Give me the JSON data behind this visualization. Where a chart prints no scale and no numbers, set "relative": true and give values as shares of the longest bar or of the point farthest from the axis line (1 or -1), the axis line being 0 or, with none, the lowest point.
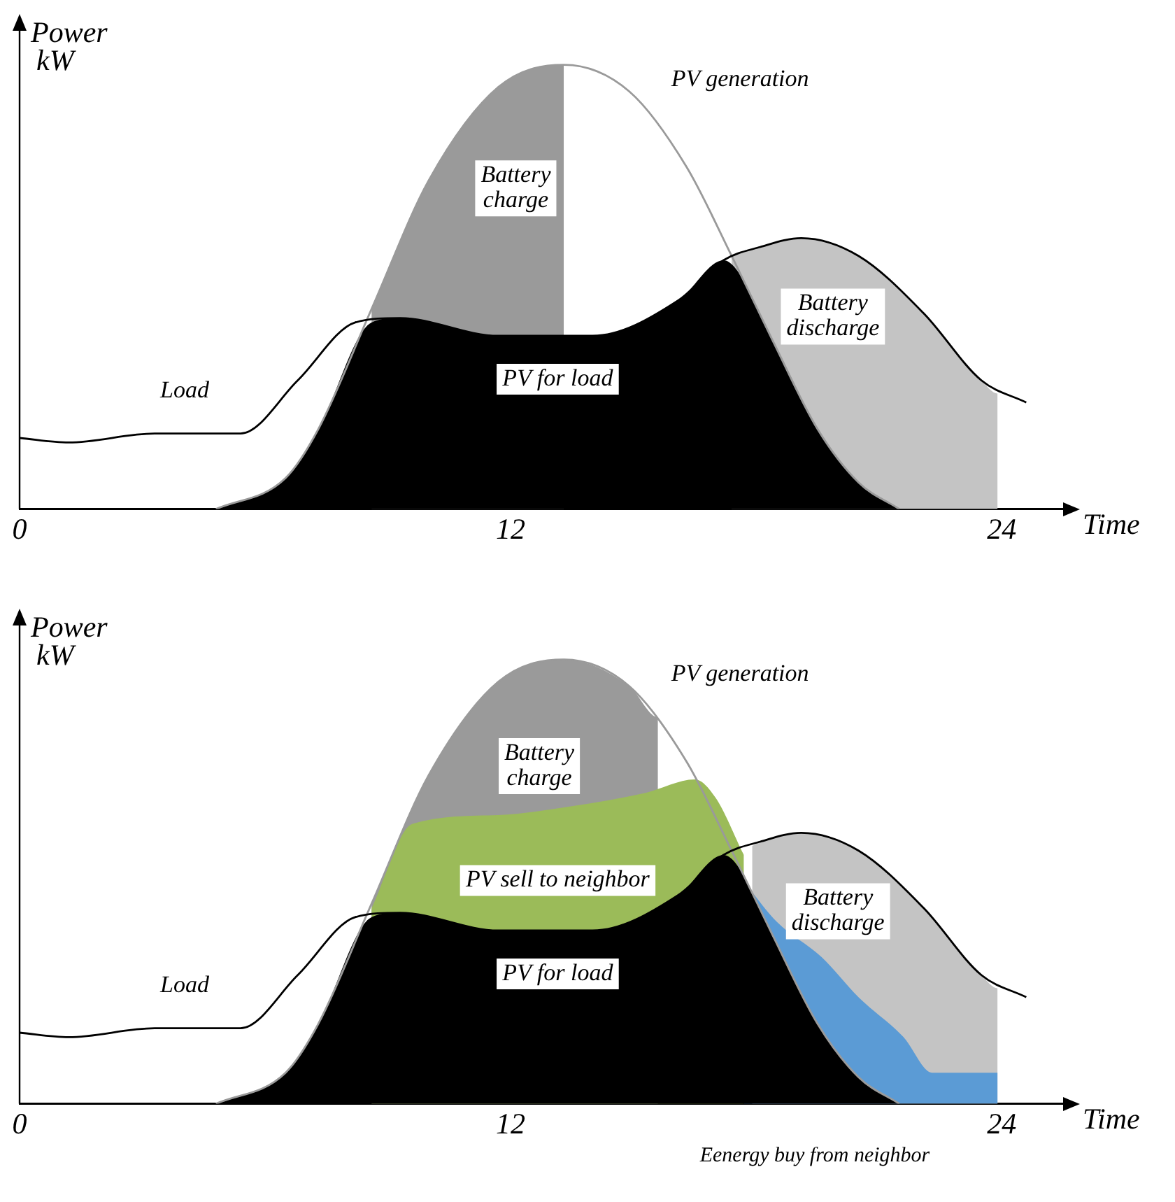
{
  "chart_data": [
    {
      "type": "line",
      "relative": true,
      "xlabel": "Time",
      "ylabel": "Power kW",
      "xlim": [
        0,
        25.5
      ],
      "xticks": [
        0,
        12,
        24
      ],
      "grid": false,
      "legend": false,
      "marker": "none",
      "series": [
        {
          "type": "area",
          "name": "Battery charge",
          "color": "#9a9a9a",
          "x": [
            8.6,
            10,
            11.7,
            13.3,
            13.3
          ],
          "values": [
            0.45,
            0.74,
            0.95,
            1,
            0
          ]
        },
        {
          "type": "area",
          "name": "Battery discharge",
          "color": "#c4c4c4",
          "x": [
            17.4,
            18.1,
            19.1,
            20.5,
            22.1,
            23.5,
            23.9,
            23.9
          ],
          "values": [
            0.57,
            0.59,
            0.61,
            0.57,
            0.44,
            0.29,
            0.26,
            0
          ]
        },
        {
          "type": "area",
          "name": "PV for load",
          "color": "#000000",
          "x": [
            4.8,
            6.5,
            7.3,
            8.6,
            9.3,
            11.7,
            14,
            16.1,
            17.2,
            18.4,
            19.5,
            20.5,
            21.5
          ],
          "values": [
            0,
            0.07,
            0.18,
            0.42,
            0.43,
            0.39,
            0.39,
            0.47,
            0.56,
            0.38,
            0.18,
            0.06,
            0
          ]
        },
        {
          "type": "line",
          "name": "PV generation",
          "color": "#9a9a9a",
          "x": [
            4.8,
            6.5,
            7.3,
            8.6,
            10,
            11.7,
            13.3,
            14.9,
            16.3,
            17.4,
            18.4,
            19.5,
            20.5,
            21.5
          ],
          "values": [
            0,
            0.07,
            0.18,
            0.45,
            0.74,
            0.95,
            1,
            0.94,
            0.77,
            0.57,
            0.38,
            0.18,
            0.06,
            0
          ]
        },
        {
          "type": "line",
          "name": "Load",
          "color": "#000000",
          "x": [
            0,
            1.2,
            3.3,
            5.4,
            6.8,
            8.2,
            9.3,
            11.7,
            14,
            16.1,
            17.2,
            18.1,
            19.1,
            20.5,
            22.1,
            23.5,
            24.6
          ],
          "values": [
            0.16,
            0.15,
            0.17,
            0.17,
            0.29,
            0.42,
            0.43,
            0.39,
            0.39,
            0.47,
            0.56,
            0.59,
            0.61,
            0.57,
            0.44,
            0.29,
            0.24
          ]
        }
      ]
    },
    {
      "type": "line",
      "relative": true,
      "xlabel": "Time",
      "ylabel": "Power kW",
      "xlim": [
        0,
        25.5
      ],
      "xticks": [
        0,
        12,
        24
      ],
      "grid": false,
      "legend": false,
      "marker": "none",
      "series": [
        {
          "type": "area",
          "name": "Battery charge",
          "color": "#9a9a9a",
          "x": [
            8.6,
            10,
            11.7,
            13.3,
            14.9,
            15.6,
            15.6
          ],
          "values": [
            0.45,
            0.74,
            0.95,
            1,
            0.94,
            0.87,
            0
          ]
        },
        {
          "type": "area",
          "name": "Battery discharge",
          "color": "#c4c4c4",
          "x": [
            17.9,
            18.1,
            19.1,
            20.5,
            22.1,
            23.5,
            23.9,
            23.9
          ],
          "values": [
            0.58,
            0.59,
            0.61,
            0.57,
            0.44,
            0.29,
            0.26,
            0
          ]
        },
        {
          "type": "area",
          "name": "PV sell to neighbor",
          "color": "#9bbb59",
          "x": [
            8.6,
            9.6,
            11.7,
            13.5,
            15.3,
            16.5,
            17,
            17.7
          ],
          "values": [
            0.44,
            0.63,
            0.65,
            0.67,
            0.7,
            0.73,
            0.69,
            0.56
          ]
        },
        {
          "type": "area",
          "name": "Eenergy buy from neighbor",
          "color": "#5b9bd5",
          "x": [
            17.7,
            18.5,
            19.6,
            20.5,
            21.6,
            22.3,
            23.9,
            23.9
          ],
          "values": [
            0.5,
            0.41,
            0.33,
            0.24,
            0.15,
            0.07,
            0.07,
            0
          ]
        },
        {
          "type": "area",
          "name": "PV for load",
          "color": "#000000",
          "x": [
            4.8,
            6.5,
            7.3,
            8.6,
            9.3,
            11.7,
            14,
            16.1,
            17.2,
            18.4,
            19.5,
            20.5,
            21.5
          ],
          "values": [
            0,
            0.07,
            0.18,
            0.42,
            0.43,
            0.39,
            0.39,
            0.47,
            0.56,
            0.38,
            0.18,
            0.06,
            0
          ]
        },
        {
          "type": "line",
          "name": "PV generation",
          "color": "#9a9a9a",
          "x": [
            4.8,
            6.5,
            7.3,
            8.6,
            10,
            11.7,
            13.3,
            14.9,
            16.3,
            17.4,
            18.4,
            19.5,
            20.5,
            21.5
          ],
          "values": [
            0,
            0.07,
            0.18,
            0.45,
            0.74,
            0.95,
            1,
            0.94,
            0.77,
            0.57,
            0.38,
            0.18,
            0.06,
            0
          ]
        },
        {
          "type": "line",
          "name": "Load",
          "color": "#000000",
          "x": [
            0,
            1.2,
            3.3,
            5.4,
            6.8,
            8.2,
            9.3,
            11.7,
            14,
            16.1,
            17.2,
            18.1,
            19.1,
            20.5,
            22.1,
            23.5,
            24.6
          ],
          "values": [
            0.16,
            0.15,
            0.17,
            0.17,
            0.29,
            0.42,
            0.43,
            0.39,
            0.39,
            0.47,
            0.56,
            0.59,
            0.61,
            0.57,
            0.44,
            0.29,
            0.24
          ]
        }
      ]
    }
  ]
}
